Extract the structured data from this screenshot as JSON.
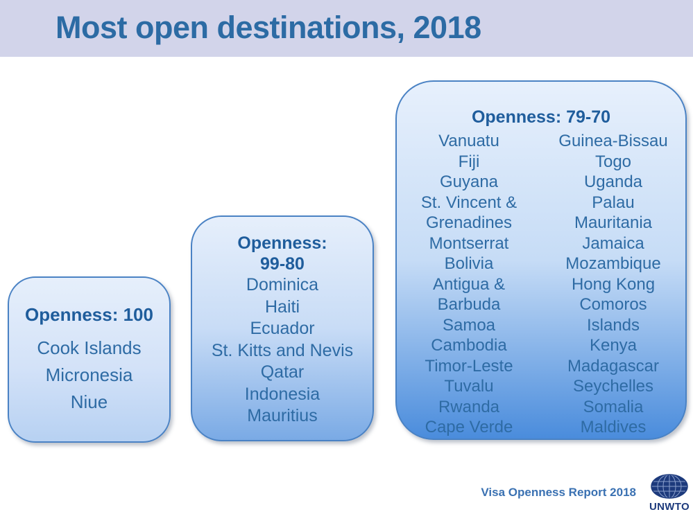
{
  "header": {
    "title": "Most open destinations, 2018"
  },
  "boxes": [
    {
      "name": "openness-100",
      "heading_lines": [
        "Openness: 100"
      ],
      "countries": [
        "Cook Islands",
        "Micronesia",
        "Niue"
      ]
    },
    {
      "name": "openness-99-80",
      "heading_lines": [
        "Openness:",
        "99-80"
      ],
      "countries": [
        "Dominica",
        "Haiti",
        "Ecuador",
        "St. Kitts and Nevis",
        "Qatar",
        "Indonesia",
        "Mauritius"
      ]
    },
    {
      "name": "openness-79-70",
      "heading_lines": [
        "Openness: 79-70"
      ],
      "columns": [
        [
          "Vanuatu",
          "Fiji",
          "Guyana",
          "St. Vincent &",
          "Grenadines",
          "Montserrat",
          "Bolivia",
          "Antigua &",
          "Barbuda",
          "Samoa",
          "Cambodia",
          "Timor-Leste",
          "Tuvalu",
          "Rwanda",
          "Cape Verde"
        ],
        [
          "Guinea-Bissau",
          "Togo",
          "Uganda",
          "Palau",
          "Mauritania",
          "Jamaica",
          "Mozambique",
          "Hong Kong",
          "Comoros",
          "Islands",
          "Kenya",
          "Madagascar",
          "Seychelles",
          "Somalia",
          "Maldives"
        ]
      ]
    }
  ],
  "footer": {
    "report_label": "Visa Openness Report 2018",
    "logo_text": "UNWTO",
    "logo_icon": "unwto-globe-icon"
  },
  "colors": {
    "header_band": "#d2d4ea",
    "title_text": "#2c6ba4",
    "box_border": "#4a82c4",
    "box_gradient_top": "#e7f0fc",
    "box1_gradient_bottom": "#b7d1f2",
    "box2_gradient_bottom": "#7aaae5",
    "box3_gradient_bottom": "#4a8cdc",
    "heading_text": "#1f5d9c",
    "country_text": "#2e6ba4",
    "footer_text": "#3a71b2",
    "logo_navy": "#1d3a7c"
  }
}
